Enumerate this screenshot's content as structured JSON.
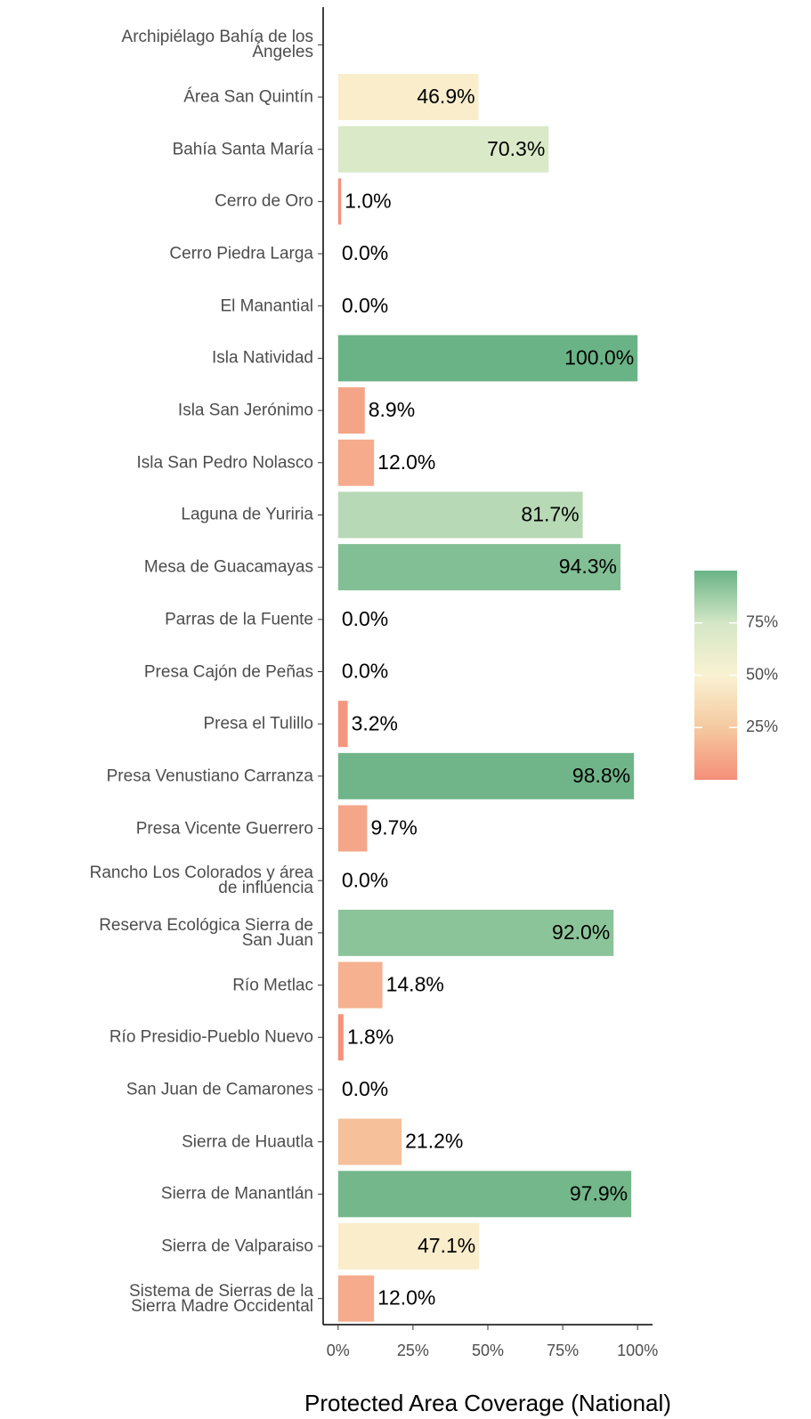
{
  "chart_data": {
    "type": "barh",
    "xlabel": "Protected Area Coverage (National)",
    "categories": [
      "Archipiélago Bahía de los\nÁngeles",
      "Área San Quintín",
      "Bahía Santa María",
      "Cerro de Oro",
      "Cerro Piedra Larga",
      "El Manantial",
      "Isla Natividad",
      "Isla San Jerónimo",
      "Isla San Pedro Nolasco",
      "Laguna de Yuriria",
      "Mesa de Guacamayas",
      "Parras de la Fuente",
      "Presa Cajón de Peñas",
      "Presa el Tulillo",
      "Presa Venustiano Carranza",
      "Presa Vicente Guerrero",
      "Rancho Los Colorados y área\nde influencia",
      "Reserva Ecológica Sierra de\nSan Juan",
      "Río Metlac",
      "Río Presidio-Pueblo Nuevo",
      "San Juan de Camarones",
      "Sierra de Huautla",
      "Sierra de Manantlán",
      "Sierra de Valparaiso",
      "Sistema de Sierras de la\nSierra Madre Occidental"
    ],
    "values": [
      null,
      46.9,
      70.3,
      1.0,
      0.0,
      0.0,
      100.0,
      8.9,
      12.0,
      81.7,
      94.3,
      0.0,
      0.0,
      3.2,
      98.8,
      9.7,
      0.0,
      92.0,
      14.8,
      1.8,
      0.0,
      21.2,
      97.9,
      47.1,
      12.0
    ],
    "value_labels": [
      null,
      "46.9%",
      "70.3%",
      "1.0%",
      "0.0%",
      "0.0%",
      "100.0%",
      "8.9%",
      "12.0%",
      "81.7%",
      "94.3%",
      "0.0%",
      "0.0%",
      "3.2%",
      "98.8%",
      "9.7%",
      "0.0%",
      "92.0%",
      "14.8%",
      "1.8%",
      "0.0%",
      "21.2%",
      "97.9%",
      "47.1%",
      "12.0%"
    ],
    "xlim": [
      -5,
      105
    ],
    "xticks": [
      {
        "value": 0,
        "label": "0%"
      },
      {
        "value": 25,
        "label": "25%"
      },
      {
        "value": 50,
        "label": "50%"
      },
      {
        "value": 75,
        "label": "75%"
      },
      {
        "value": 100,
        "label": "100%"
      }
    ],
    "colorscale": [
      "#f58f79",
      "#f5c9a0",
      "#f9f2d2",
      "#d3e7c6",
      "#6ab386"
    ],
    "clim": [
      0,
      100
    ],
    "cticks": [
      {
        "value": 25,
        "label": "25%"
      },
      {
        "value": 50,
        "label": "50%"
      },
      {
        "value": 75,
        "label": "75%"
      }
    ]
  }
}
